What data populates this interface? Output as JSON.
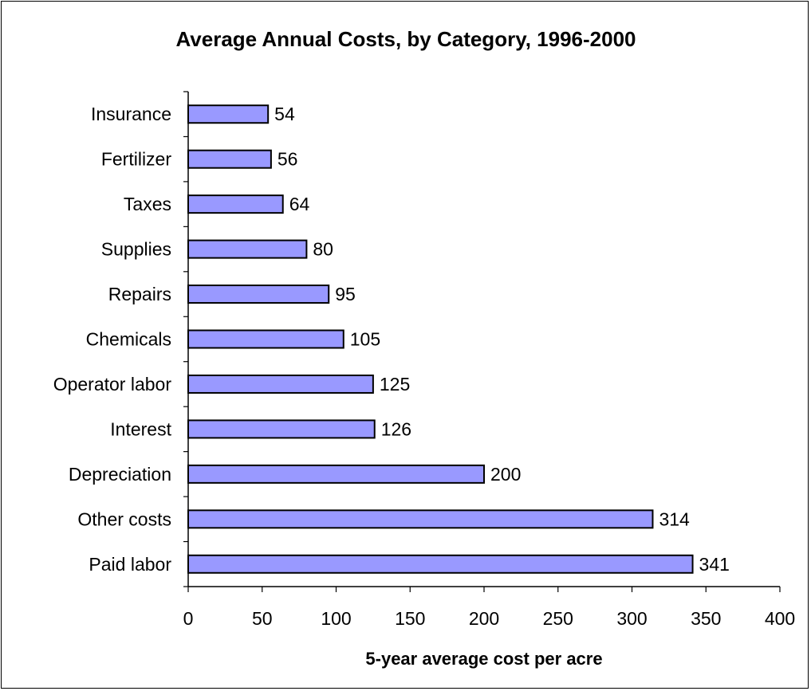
{
  "chart_data": {
    "type": "bar",
    "orientation": "horizontal",
    "title": "Average Annual Costs, by Category, 1996-2000",
    "xlabel": "5-year average cost per acre",
    "ylabel": "",
    "categories": [
      "Insurance",
      "Fertilizer",
      "Taxes",
      "Supplies",
      "Repairs",
      "Chemicals",
      "Operator labor",
      "Interest",
      "Depreciation",
      "Other costs",
      "Paid labor"
    ],
    "values": [
      54,
      56,
      64,
      80,
      95,
      105,
      125,
      126,
      200,
      314,
      341
    ],
    "xlim": [
      0,
      400
    ],
    "xticks": [
      0,
      50,
      100,
      150,
      200,
      250,
      300,
      350,
      400
    ],
    "data_labels": true,
    "grid": false,
    "legend": "none",
    "bar_color": "#9999ff",
    "bar_edge_color": "#000000"
  }
}
